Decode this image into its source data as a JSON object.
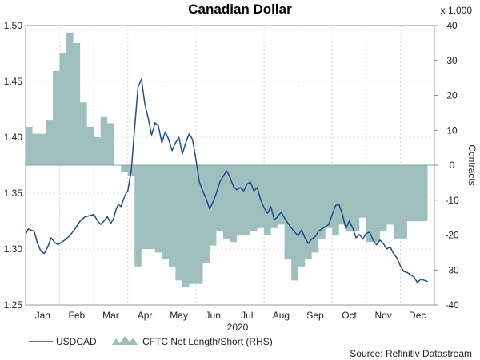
{
  "chart_data": {
    "type": "line",
    "title": "Canadian Dollar",
    "xlabel": "2020",
    "x_tick_labels": [
      "Jan",
      "Feb",
      "Mar",
      "Apr",
      "May",
      "Jun",
      "Jul",
      "Aug",
      "Sep",
      "Oct",
      "Nov",
      "Dec"
    ],
    "x_range": [
      0,
      12
    ],
    "left_axis": {
      "ylim": [
        1.25,
        1.5
      ],
      "ticks": [
        "1.25",
        "1.30",
        "1.35",
        "1.40",
        "1.45",
        "1.50"
      ]
    },
    "right_axis": {
      "ylabel": "Contracts",
      "unit_note": "x 1,000",
      "ylim": [
        -40,
        40
      ],
      "ticks": [
        "-40",
        "-30",
        "-20",
        "-10",
        "0",
        "10",
        "20",
        "30",
        "40"
      ]
    },
    "grid": true,
    "legend_position": "bottom",
    "source": "Source: Refinitiv Datastream",
    "series": [
      {
        "name": "USDCAD",
        "axis": "left",
        "color": "#1f4e8c",
        "x": [
          0,
          0.08,
          0.15,
          0.25,
          0.35,
          0.45,
          0.55,
          0.65,
          0.75,
          0.85,
          0.95,
          1.05,
          1.15,
          1.3,
          1.45,
          1.6,
          1.75,
          1.9,
          2.0,
          2.1,
          2.2,
          2.3,
          2.4,
          2.5,
          2.58,
          2.65,
          2.72,
          2.8,
          2.88,
          2.95,
          3.0,
          3.1,
          3.2,
          3.3,
          3.4,
          3.5,
          3.6,
          3.7,
          3.8,
          3.9,
          4.0,
          4.1,
          4.2,
          4.3,
          4.4,
          4.5,
          4.6,
          4.7,
          4.8,
          4.9,
          5.0,
          5.1,
          5.2,
          5.3,
          5.4,
          5.5,
          5.6,
          5.7,
          5.8,
          5.9,
          6.0,
          6.1,
          6.2,
          6.3,
          6.4,
          6.5,
          6.6,
          6.7,
          6.8,
          6.9,
          7.0,
          7.1,
          7.2,
          7.3,
          7.4,
          7.5,
          7.6,
          7.7,
          7.8,
          7.9,
          8.0,
          8.1,
          8.2,
          8.3,
          8.4,
          8.5,
          8.6,
          8.7,
          8.8,
          8.9,
          9.0,
          9.1,
          9.2,
          9.3,
          9.4,
          9.5,
          9.6,
          9.7,
          9.8,
          9.9,
          10.0,
          10.1,
          10.2,
          10.3,
          10.4,
          10.5,
          10.6,
          10.7,
          10.8,
          10.9,
          11.0,
          11.1,
          11.2,
          11.3,
          11.4,
          11.5,
          11.6,
          11.7,
          11.8
        ],
        "values": [
          1.313,
          1.318,
          1.317,
          1.316,
          1.305,
          1.298,
          1.296,
          1.302,
          1.31,
          1.306,
          1.304,
          1.306,
          1.308,
          1.312,
          1.318,
          1.325,
          1.329,
          1.33,
          1.331,
          1.326,
          1.322,
          1.325,
          1.329,
          1.323,
          1.327,
          1.335,
          1.34,
          1.338,
          1.345,
          1.35,
          1.352,
          1.37,
          1.408,
          1.445,
          1.452,
          1.43,
          1.417,
          1.402,
          1.413,
          1.41,
          1.395,
          1.405,
          1.398,
          1.388,
          1.395,
          1.4,
          1.385,
          1.395,
          1.403,
          1.398,
          1.38,
          1.36,
          1.352,
          1.345,
          1.336,
          1.342,
          1.35,
          1.36,
          1.365,
          1.37,
          1.364,
          1.356,
          1.353,
          1.355,
          1.352,
          1.358,
          1.36,
          1.352,
          1.355,
          1.344,
          1.337,
          1.332,
          1.338,
          1.326,
          1.329,
          1.333,
          1.328,
          1.323,
          1.319,
          1.315,
          1.312,
          1.317,
          1.31,
          1.305,
          1.309,
          1.311,
          1.316,
          1.318,
          1.32,
          1.322,
          1.331,
          1.339,
          1.34,
          1.331,
          1.318,
          1.325,
          1.319,
          1.31,
          1.313,
          1.309,
          1.314,
          1.315,
          1.308,
          1.304,
          1.308,
          1.305,
          1.3,
          1.302,
          1.296,
          1.292,
          1.285,
          1.28,
          1.279,
          1.277,
          1.275,
          1.27,
          1.273,
          1.272,
          1.271
        ]
      },
      {
        "name": "CFTC Net Length/Short (RHS)",
        "axis": "right",
        "type": "area",
        "color": "#9fbfbf",
        "x": [
          0,
          0.2,
          0.4,
          0.6,
          0.8,
          1.0,
          1.2,
          1.4,
          1.6,
          1.8,
          2.0,
          2.2,
          2.4,
          2.6,
          2.8,
          3.0,
          3.2,
          3.4,
          3.6,
          3.8,
          4.0,
          4.2,
          4.4,
          4.6,
          4.8,
          5.0,
          5.2,
          5.4,
          5.6,
          5.8,
          6.0,
          6.2,
          6.4,
          6.6,
          6.8,
          7.0,
          7.2,
          7.4,
          7.6,
          7.8,
          8.0,
          8.2,
          8.4,
          8.6,
          8.8,
          9.0,
          9.2,
          9.4,
          9.6,
          9.8,
          10.0,
          10.2,
          10.4,
          10.6,
          10.8,
          11.0,
          11.2,
          11.4,
          11.6,
          11.8
        ],
        "values": [
          11,
          9,
          9,
          13,
          27,
          32,
          38,
          35,
          18,
          11,
          8,
          14,
          12,
          0,
          -2,
          -3,
          -29,
          -24,
          -24,
          -25,
          -27,
          -29,
          -33,
          -35,
          -34,
          -34,
          -28,
          -23,
          -19,
          -21,
          -22,
          -20,
          -20,
          -19,
          -18,
          -20,
          -18,
          -17,
          -27,
          -33,
          -29,
          -27,
          -25,
          -21,
          -18,
          -20,
          -17,
          -19,
          -19,
          -15,
          -22,
          -22,
          -19,
          -17,
          -21,
          -21,
          -16,
          -16,
          -16,
          -16
        ]
      }
    ]
  }
}
